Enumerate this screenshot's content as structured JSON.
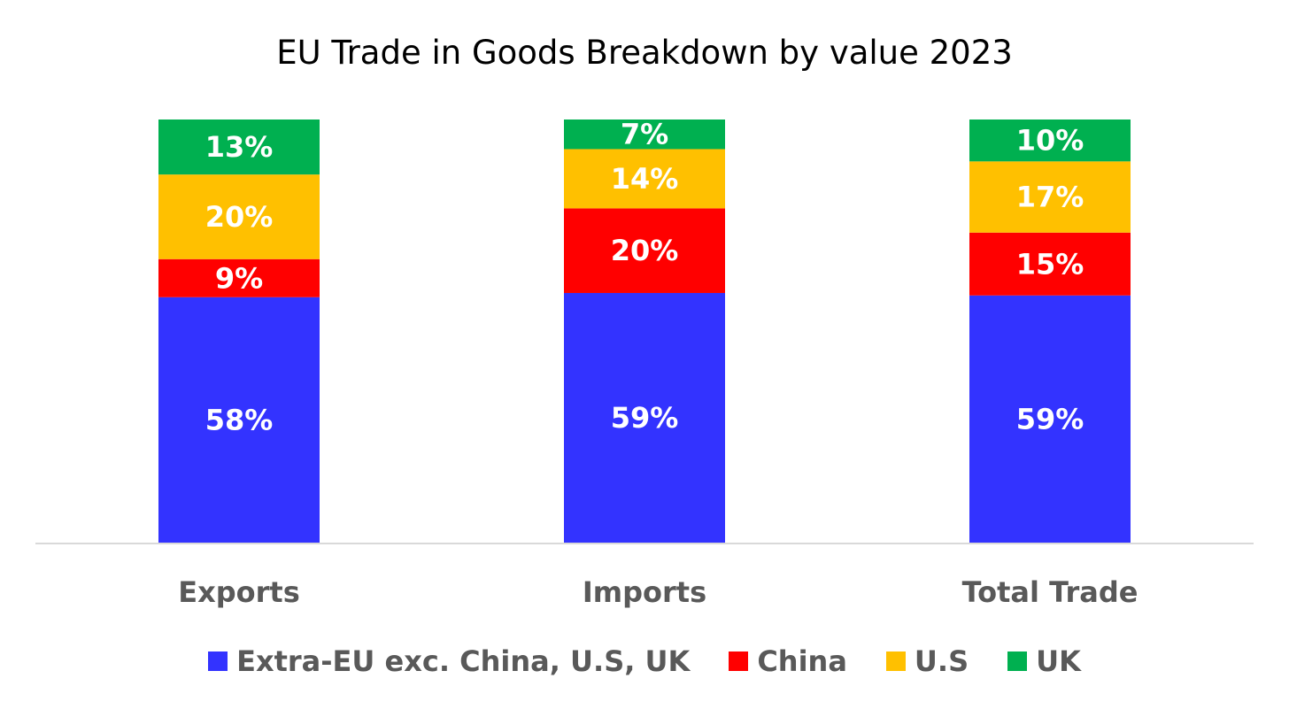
{
  "chart_data": {
    "type": "bar",
    "stacked": true,
    "percent_stacked": true,
    "title": "EU Trade in Goods Breakdown by value 2023",
    "xlabel": "",
    "ylabel": "",
    "ylim": [
      0,
      100
    ],
    "grid": false,
    "legend_position": "bottom",
    "categories": [
      "Exports",
      "Imports",
      "Total Trade"
    ],
    "series": [
      {
        "name": "Extra-EU exc. China, U.S, UK",
        "color": "#3333FF",
        "values": [
          58,
          59,
          59
        ],
        "labels": [
          "58%",
          "59%",
          "59%"
        ]
      },
      {
        "name": "China",
        "color": "#FF0000",
        "values": [
          9,
          20,
          15
        ],
        "labels": [
          "9%",
          "20%",
          "15%"
        ]
      },
      {
        "name": "U.S",
        "color": "#FFC000",
        "values": [
          20,
          14,
          17
        ],
        "labels": [
          "20%",
          "14%",
          "17%"
        ]
      },
      {
        "name": "UK",
        "color": "#00B050",
        "values": [
          13,
          7,
          10
        ],
        "labels": [
          "13%",
          "7%",
          "10%"
        ]
      }
    ]
  }
}
